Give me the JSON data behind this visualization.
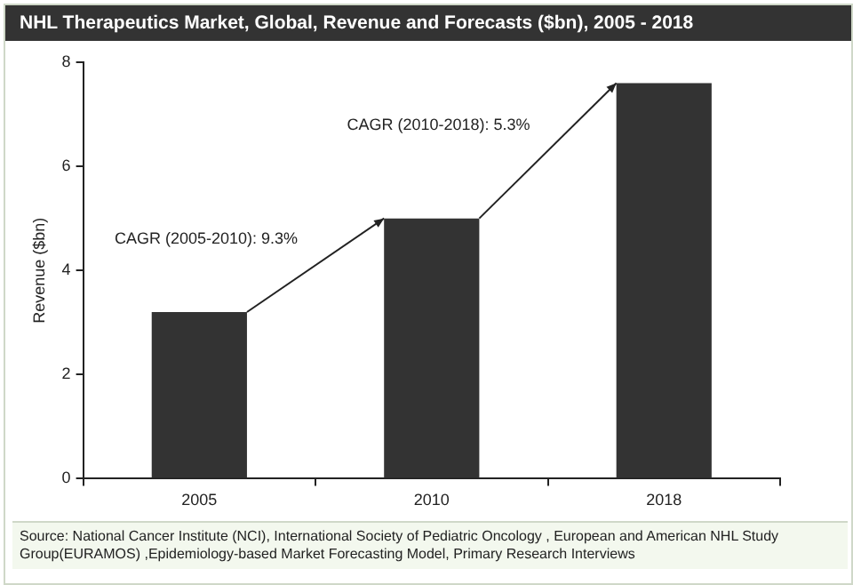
{
  "chart_data": {
    "type": "bar",
    "title": "NHL Therapeutics Market, Global, Revenue and Forecasts ($bn), 2005 - 2018",
    "ylabel": "Revenue ($bn)",
    "categories": [
      "2005",
      "2010",
      "2018"
    ],
    "values": [
      3.2,
      5.0,
      7.6
    ],
    "color": "#333333",
    "ylim": [
      0,
      8
    ],
    "yticks": [
      0,
      2,
      4,
      6,
      8
    ],
    "grid": false,
    "legend": false,
    "annotations": [
      "CAGR (2005-2010): 9.3%",
      "CAGR (2010-2018): 5.3%",
      "Source: National Cancer Institute (NCI), International Society of Pediatric Oncology , European and American NHL Study Group(EURAMOS) ,Epidemiology-based Market Forecasting Model, Primary Research Interviews"
    ]
  }
}
